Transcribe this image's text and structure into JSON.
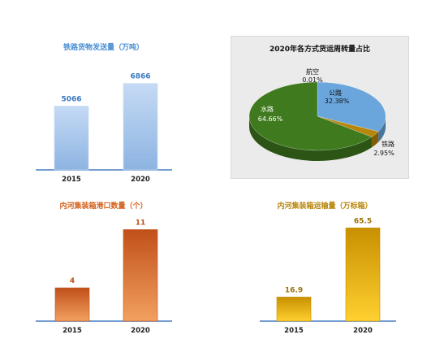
{
  "chart_data": [
    {
      "type": "bar",
      "title": "铁路货物发送量（万吨）",
      "categories": [
        "2015",
        "2020"
      ],
      "values": [
        5066,
        6866
      ],
      "value_labels": [
        "5066",
        "6866"
      ],
      "ylim": [
        0,
        8200
      ],
      "colors": {
        "title": "#4a8fd4",
        "bar_top": "#c5daf4",
        "bar_bottom": "#8db4e2",
        "label": "#3a78c0"
      }
    },
    {
      "type": "pie",
      "title": "2020年各方式货运周转量占比",
      "slices": [
        {
          "name": "航空",
          "value": 0.01,
          "label": "0.01%",
          "color": "#c05a1a"
        },
        {
          "name": "公路",
          "value": 32.38,
          "label": "32.38%",
          "color": "#6aa6dc"
        },
        {
          "name": "铁路",
          "value": 2.95,
          "label": "2.95%",
          "color": "#b8860b"
        },
        {
          "name": "水路",
          "value": 64.66,
          "label": "64.66%",
          "color": "#3f7a1e"
        }
      ]
    },
    {
      "type": "bar",
      "title": "内河集装箱港口数量（个）",
      "categories": [
        "2015",
        "2020"
      ],
      "values": [
        4,
        11
      ],
      "value_labels": [
        "4",
        "11"
      ],
      "ylim": [
        0,
        13
      ],
      "colors": {
        "title": "#d2601a",
        "bar_top": "#c0501a",
        "bar_bottom": "#f2a060",
        "label": "#c0501a"
      }
    },
    {
      "type": "bar",
      "title": "内河集装箱运输量（万标箱）",
      "categories": [
        "2015",
        "2020"
      ],
      "values": [
        16.9,
        65.5
      ],
      "value_labels": [
        "16.9",
        "65.5"
      ],
      "ylim": [
        0,
        76
      ],
      "colors": {
        "title": "#b8860b",
        "bar_top": "#c89000",
        "bar_bottom": "#ffd030",
        "label": "#a07000"
      }
    }
  ]
}
